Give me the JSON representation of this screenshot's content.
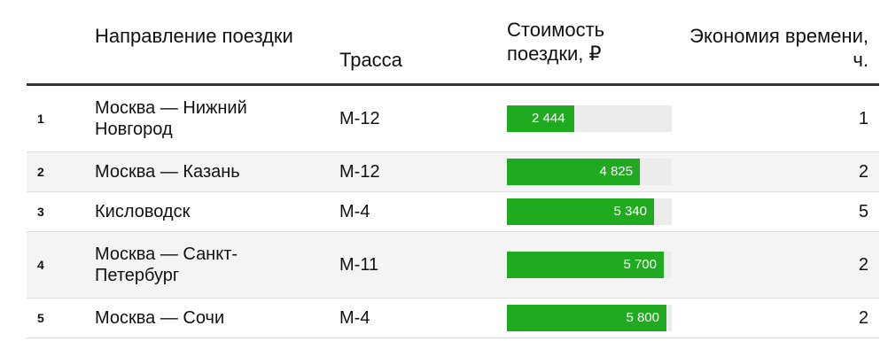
{
  "headers": {
    "direction": "Направление поездки",
    "route": "Трасса",
    "cost": "Стоимость поездки, ₽",
    "savings": "Экономия времени, ч."
  },
  "colors": {
    "bar": "#1faa1f",
    "track": "#ececec",
    "stripe": "#f4f4f4"
  },
  "chart_data": {
    "type": "table",
    "bar_max": 6000,
    "columns": [
      "",
      "Направление поездки",
      "Трасса",
      "Стоимость поездки, ₽",
      "Экономия времени, ч."
    ],
    "rows": [
      {
        "num": "1",
        "direction": "Москва — Нижний Новгород",
        "route": "М-12",
        "cost": 2444,
        "cost_label": "2 444",
        "savings": "1"
      },
      {
        "num": "2",
        "direction": "Москва — Казань",
        "route": "М-12",
        "cost": 4825,
        "cost_label": "4 825",
        "savings": "2"
      },
      {
        "num": "3",
        "direction": "Кисловодск",
        "route": "М-4",
        "cost": 5340,
        "cost_label": "5 340",
        "savings": "5"
      },
      {
        "num": "4",
        "direction": "Москва — Санкт-Петербург",
        "route": "М-11",
        "cost": 5700,
        "cost_label": "5 700",
        "savings": "2"
      },
      {
        "num": "5",
        "direction": "Москва — Сочи",
        "route": "М-4",
        "cost": 5800,
        "cost_label": "5 800",
        "savings": "2"
      }
    ]
  }
}
